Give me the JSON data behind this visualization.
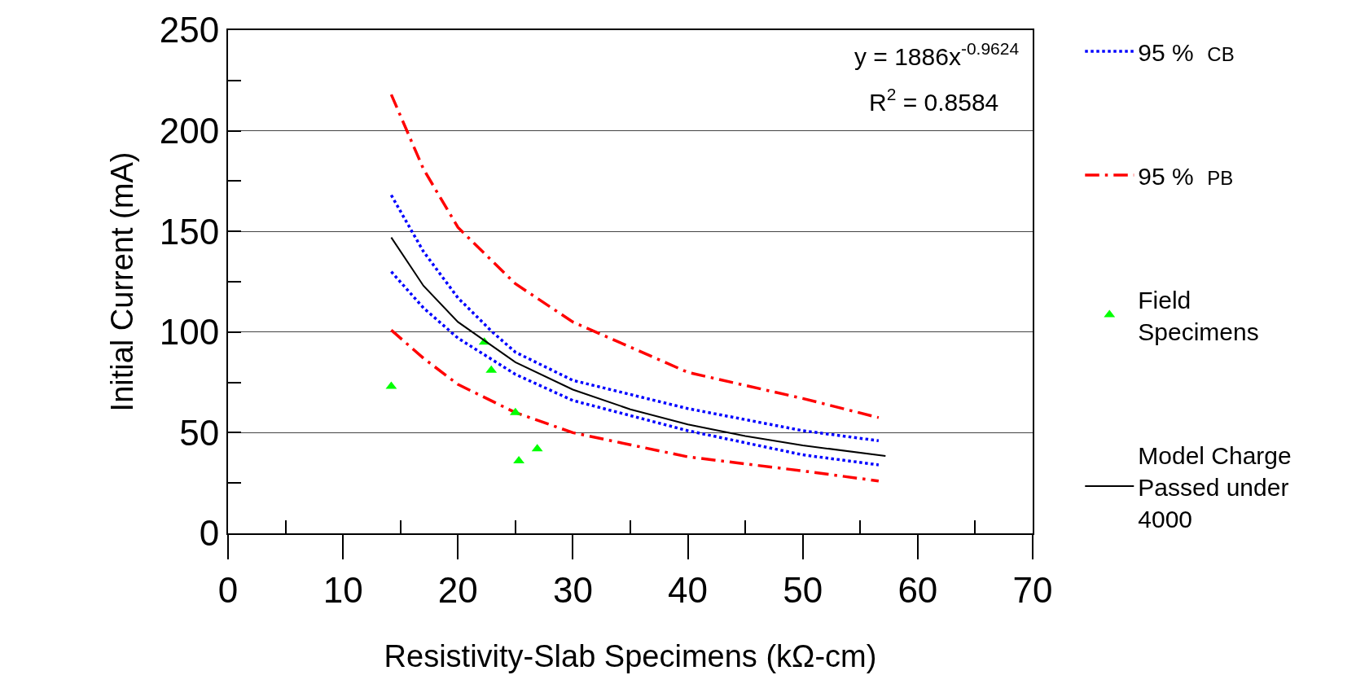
{
  "chart_data": {
    "type": "line",
    "xlabel": "Resistivity-Slab Specimens (kΩ-cm)",
    "ylabel": "Initial Current (mA)",
    "xlim": [
      0,
      70
    ],
    "ylim": [
      0,
      250
    ],
    "xticks": [
      0,
      {
        "value": 5,
        "label": null
      },
      10,
      {
        "value": 15,
        "label": null
      },
      20,
      {
        "value": 25,
        "label": null
      },
      30,
      {
        "value": 35,
        "label": null
      },
      40,
      {
        "value": 45,
        "label": null
      },
      50,
      {
        "value": 55,
        "label": null
      },
      60,
      {
        "value": 65,
        "label": null
      },
      70
    ],
    "yticks": [
      0,
      {
        "value": 25,
        "label": null
      },
      50,
      {
        "value": 75,
        "label": null
      },
      100,
      {
        "value": 125,
        "label": null
      },
      150,
      {
        "value": 175,
        "label": null
      },
      200,
      {
        "value": 225,
        "label": null
      },
      250
    ],
    "grid": "y",
    "legend": "right",
    "annotations": [
      "y = 1886x$^{-0.9624}$",
      "R$^{2}$ = 0.8584"
    ],
    "series": [
      {
        "name": "95 %  $_{CB}$",
        "color": "#0000ff",
        "line_style": "dotted",
        "marker": "none",
        "x": [
          14.2,
          17,
          20,
          23,
          25,
          30,
          40,
          50,
          56.6
        ],
        "values": [
          168,
          140,
          117,
          100,
          90,
          76,
          62,
          51,
          46
        ]
      },
      {
        "color": "#0000ff",
        "line_style": "dotted",
        "marker": "none",
        "x": [
          14.2,
          17,
          20,
          25,
          30,
          40,
          50,
          56.6
        ],
        "values": [
          130,
          112,
          97,
          79,
          66,
          51,
          39,
          34
        ]
      },
      {
        "name": "95 %  $_{PB}$",
        "color": "#ff0000",
        "line_style": "dashdot",
        "marker": "none",
        "x": [
          14.2,
          17,
          20,
          25,
          30,
          40,
          50,
          56.6
        ],
        "values": [
          218,
          181,
          152,
          124,
          105,
          80,
          67,
          57.5
        ]
      },
      {
        "color": "#ff0000",
        "line_style": "dashdot",
        "marker": "none",
        "x": [
          14.2,
          17,
          20,
          25,
          30,
          40,
          50,
          56.6
        ],
        "values": [
          101,
          87,
          74,
          60,
          50,
          38,
          31,
          26
        ]
      },
      {
        "name": "Field Specimens",
        "type": "scatter",
        "color": "#00ff00",
        "marker": "triangle",
        "x": [
          14.2,
          22.3,
          22.9,
          25.0,
          25.3,
          26.9
        ],
        "values": [
          73,
          95,
          81,
          60,
          36,
          42
        ]
      },
      {
        "name": "Model Charge Passed under 4000",
        "color": "#000000",
        "line_style": "solid",
        "marker": "none",
        "x": [
          14.2,
          17,
          20,
          25,
          30,
          35,
          40,
          45,
          50,
          57.2
        ],
        "values": [
          147,
          123,
          105,
          85,
          71.4,
          61.6,
          54.1,
          48.3,
          43.7,
          38.4
        ]
      }
    ]
  }
}
